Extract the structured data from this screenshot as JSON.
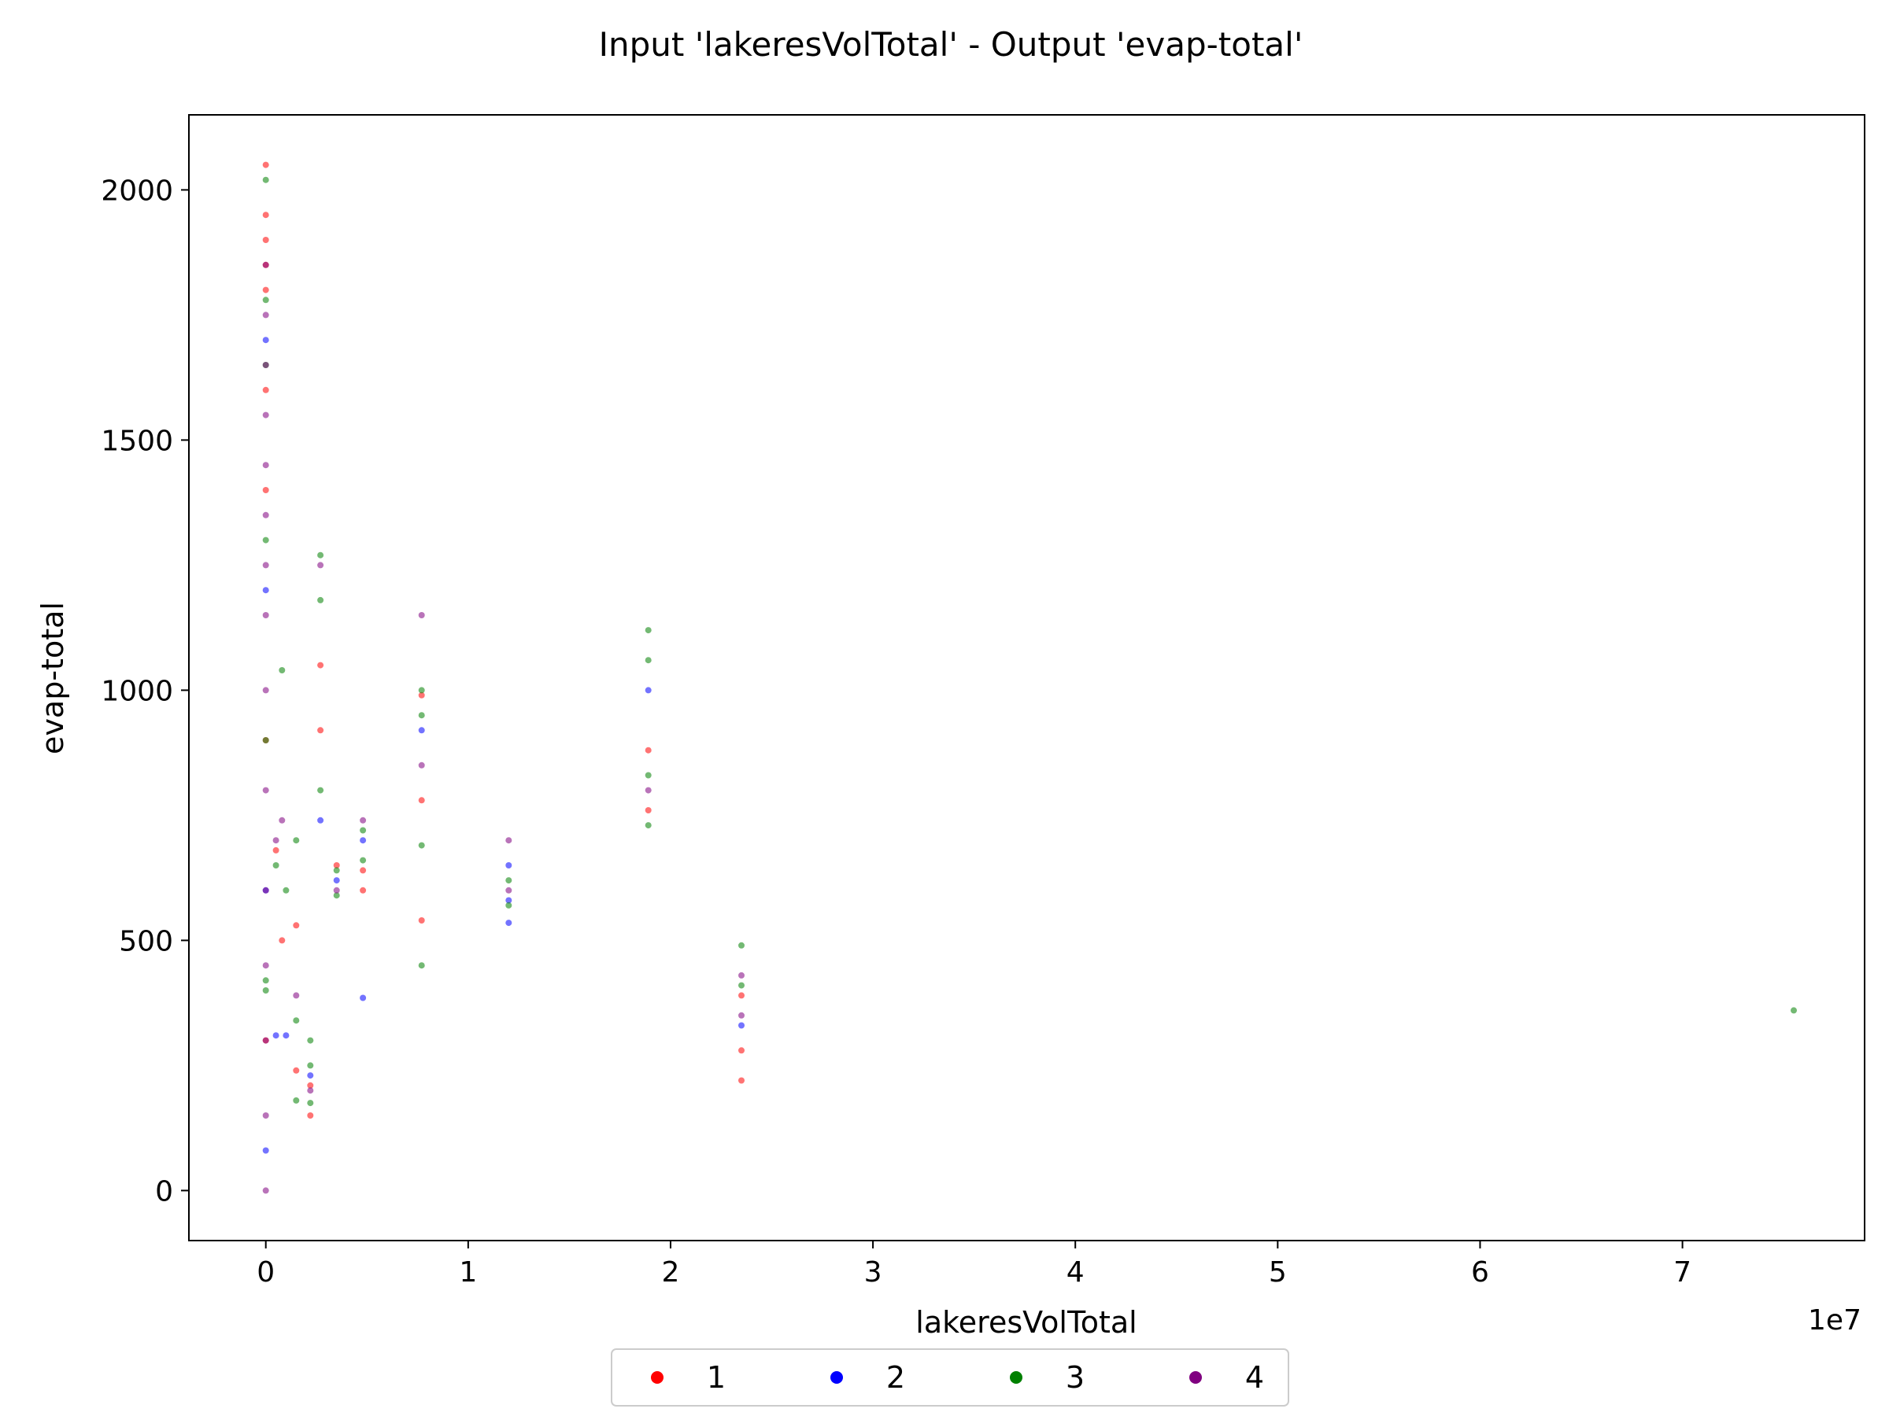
{
  "chart_data": {
    "type": "scatter",
    "title": "Input 'lakeresVolTotal' - Output 'evap-total'",
    "xlabel": "lakeresVolTotal",
    "ylabel": "evap-total",
    "x_offset_label": "1e7",
    "xlim": [
      -3800000,
      79000000
    ],
    "ylim": [
      -100,
      2150
    ],
    "x_ticks": [
      0,
      10000000,
      20000000,
      30000000,
      40000000,
      50000000,
      60000000,
      70000000
    ],
    "x_tick_labels": [
      "0",
      "1",
      "2",
      "3",
      "4",
      "5",
      "6",
      "7"
    ],
    "y_ticks": [
      0,
      500,
      1000,
      1500,
      2000
    ],
    "y_tick_labels": [
      "0",
      "500",
      "1000",
      "1500",
      "2000"
    ],
    "grid": false,
    "legend_placement": "bottom-center (below plot)",
    "series": [
      {
        "name": "1",
        "color": "#ff0000",
        "x": [
          0,
          0,
          0,
          0,
          0,
          0,
          0,
          0,
          0,
          500000,
          800000,
          1500000,
          1500000,
          2200000,
          2200000,
          2700000,
          2700000,
          3500000,
          4800000,
          4800000,
          7700000,
          7700000,
          7700000,
          18900000,
          18900000,
          23500000,
          23500000,
          23500000
        ],
        "y": [
          2050,
          1950,
          1900,
          1850,
          1800,
          1600,
          1400,
          900,
          300,
          680,
          500,
          530,
          240,
          150,
          210,
          1050,
          920,
          650,
          640,
          600,
          990,
          780,
          540,
          880,
          760,
          390,
          280,
          220
        ]
      },
      {
        "name": "2",
        "color": "#0000ff",
        "x": [
          0,
          0,
          0,
          0,
          500000,
          1000000,
          2200000,
          2700000,
          3500000,
          4800000,
          4800000,
          7700000,
          12000000,
          12000000,
          12000000,
          18900000,
          23500000
        ],
        "y": [
          1700,
          1200,
          600,
          80,
          310,
          310,
          230,
          740,
          620,
          700,
          385,
          920,
          650,
          580,
          535,
          1000,
          330
        ]
      },
      {
        "name": "3",
        "color": "#008000",
        "x": [
          0,
          0,
          0,
          0,
          0,
          0,
          0,
          500000,
          800000,
          1000000,
          1500000,
          1500000,
          1500000,
          2200000,
          2200000,
          2200000,
          2700000,
          2700000,
          2700000,
          3500000,
          3500000,
          4800000,
          4800000,
          7700000,
          7700000,
          7700000,
          7700000,
          12000000,
          12000000,
          18900000,
          18900000,
          18900000,
          18900000,
          23500000,
          23500000,
          75500000
        ],
        "y": [
          2020,
          1780,
          1650,
          1300,
          900,
          420,
          400,
          650,
          1040,
          600,
          700,
          340,
          180,
          300,
          250,
          175,
          1270,
          1180,
          800,
          640,
          590,
          720,
          660,
          1000,
          950,
          690,
          450,
          620,
          570,
          1120,
          1060,
          830,
          730,
          490,
          410,
          360
        ]
      },
      {
        "name": "4",
        "color": "#800080",
        "x": [
          0,
          0,
          0,
          0,
          0,
          0,
          0,
          0,
          0,
          0,
          0,
          0,
          0,
          0,
          0,
          500000,
          800000,
          1500000,
          2200000,
          2700000,
          3500000,
          4800000,
          7700000,
          7700000,
          12000000,
          12000000,
          18900000,
          23500000,
          23500000
        ],
        "y": [
          1850,
          1750,
          1650,
          1550,
          1450,
          1350,
          1250,
          1150,
          1000,
          800,
          600,
          450,
          300,
          150,
          0,
          700,
          740,
          390,
          200,
          1250,
          600,
          740,
          1150,
          850,
          700,
          600,
          800,
          430,
          350
        ]
      }
    ]
  }
}
